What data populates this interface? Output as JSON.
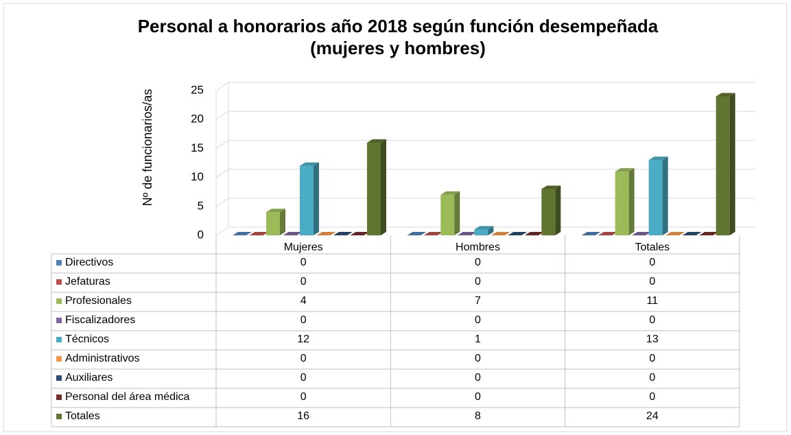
{
  "chart_data": {
    "type": "bar3d",
    "title": [
      "Personal a honorarios año 2018 según función desempeñada",
      "(mujeres y hombres)"
    ],
    "y_label": "Nº de funcionarios/as",
    "categories": [
      "Mujeres",
      "Hombres",
      "Totales"
    ],
    "ylim": [
      0,
      25
    ],
    "yticks": [
      0,
      5,
      10,
      15,
      20,
      25
    ],
    "grid": true,
    "legend": "table",
    "series": [
      {
        "name": "Directivos",
        "color": "#4f81bd",
        "values": [
          0,
          0,
          0
        ]
      },
      {
        "name": "Jefaturas",
        "color": "#c0504d",
        "values": [
          0,
          0,
          0
        ]
      },
      {
        "name": "Profesionales",
        "color": "#9bbb59",
        "values": [
          4,
          7,
          11
        ]
      },
      {
        "name": "Fiscalizadores",
        "color": "#8064a2",
        "values": [
          0,
          0,
          0
        ]
      },
      {
        "name": "Técnicos",
        "color": "#4bacc6",
        "values": [
          12,
          1,
          13
        ]
      },
      {
        "name": "Administrativos",
        "color": "#f79646",
        "values": [
          0,
          0,
          0
        ]
      },
      {
        "name": "Auxiliares",
        "color": "#2c4d75",
        "values": [
          0,
          0,
          0
        ]
      },
      {
        "name": "Personal del área médica",
        "color": "#772c2a",
        "values": [
          0,
          0,
          0
        ]
      },
      {
        "name": "Totales",
        "color": "#5f7530",
        "values": [
          16,
          8,
          24
        ]
      }
    ]
  }
}
